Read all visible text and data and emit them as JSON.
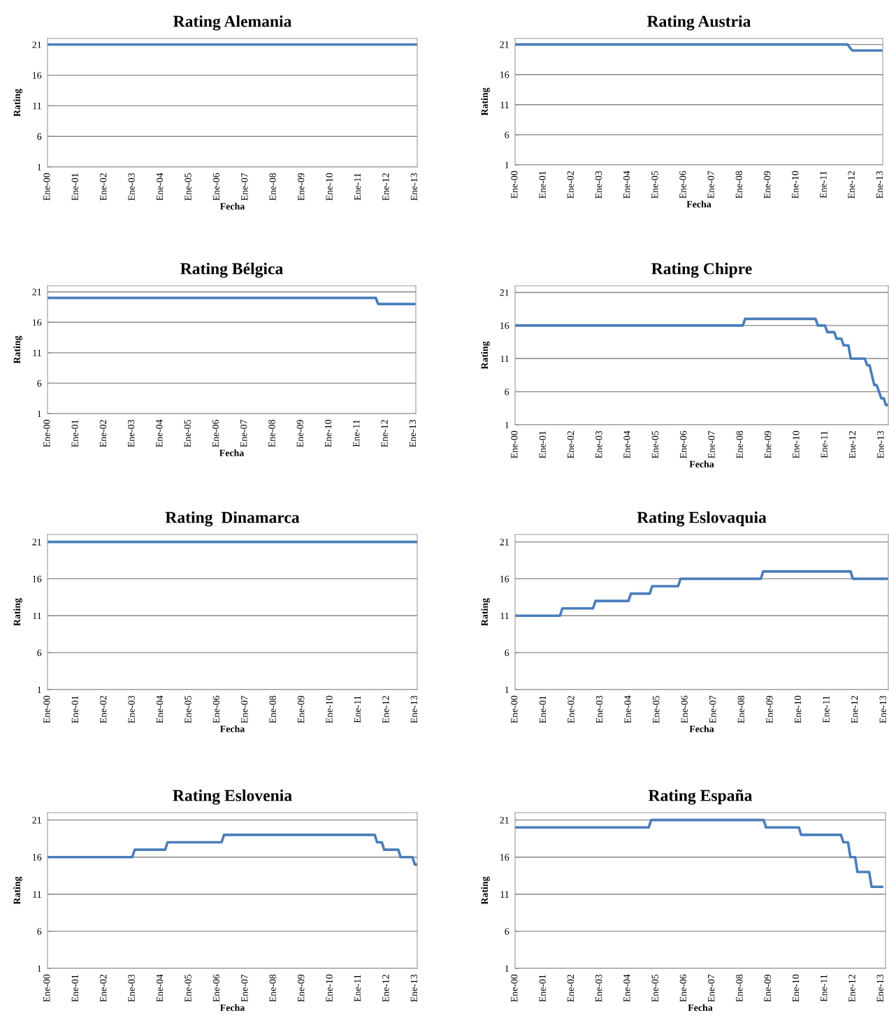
{
  "chart_data": [
    {
      "type": "line",
      "title": "Rating Alemania",
      "xlabel": "Fecha",
      "ylabel": "Rating",
      "grid": "y",
      "ylim": [
        1,
        22
      ],
      "yticks": [
        1,
        6,
        11,
        16,
        21
      ],
      "xlim": [
        "2000-01",
        "2013-02"
      ],
      "xticks": [
        {
          "value": "2000-01",
          "label": "Ene-00"
        },
        {
          "value": "2001-01",
          "label": "Ene-01"
        },
        {
          "value": "2002-01",
          "label": "Ene-02"
        },
        {
          "value": "2003-01",
          "label": "Ene-03"
        },
        {
          "value": "2004-01",
          "label": "Ene-04"
        },
        {
          "value": "2005-01",
          "label": "Ene-05"
        },
        {
          "value": "2006-01",
          "label": "Ene-06"
        },
        {
          "value": "2007-01",
          "label": "Ene-07"
        },
        {
          "value": "2008-01",
          "label": "Ene-08"
        },
        {
          "value": "2009-01",
          "label": "Ene-09"
        },
        {
          "value": "2010-01",
          "label": "Ene-10"
        },
        {
          "value": "2011-01",
          "label": "Ene-11"
        },
        {
          "value": "2012-01",
          "label": "Ene-12"
        },
        {
          "value": "2013-01",
          "label": "Ene-13"
        }
      ],
      "series": [
        {
          "color": "#4a7ebb",
          "x": [
            "2000-01",
            "2013-02"
          ],
          "values": [
            21,
            21
          ]
        }
      ]
    },
    {
      "type": "line",
      "title": "Rating Austria",
      "xlabel": "Fecha",
      "ylabel": "Rating",
      "grid": "y",
      "ylim": [
        1,
        22
      ],
      "yticks": [
        1,
        6,
        11,
        16,
        21
      ],
      "xlim": [
        "2000-01",
        "2013-02"
      ],
      "xticks": [
        {
          "value": "2000-01",
          "label": "Ene-00"
        },
        {
          "value": "2001-01",
          "label": "Ene-01"
        },
        {
          "value": "2002-01",
          "label": "Ene-02"
        },
        {
          "value": "2003-01",
          "label": "Ene-03"
        },
        {
          "value": "2004-01",
          "label": "Ene-04"
        },
        {
          "value": "2005-01",
          "label": "Ene-05"
        },
        {
          "value": "2006-01",
          "label": "Ene-06"
        },
        {
          "value": "2007-01",
          "label": "Ene-07"
        },
        {
          "value": "2008-01",
          "label": "Ene-08"
        },
        {
          "value": "2009-01",
          "label": "Ene-09"
        },
        {
          "value": "2010-01",
          "label": "Ene-10"
        },
        {
          "value": "2011-01",
          "label": "Ene-11"
        },
        {
          "value": "2012-01",
          "label": "Ene-12"
        },
        {
          "value": "2013-01",
          "label": "Ene-13"
        }
      ],
      "series": [
        {
          "color": "#4a7ebb",
          "x": [
            "2000-01",
            "2011-11",
            "2012-01",
            "2013-02"
          ],
          "values": [
            21,
            21,
            20,
            20
          ]
        }
      ]
    },
    {
      "type": "line",
      "title": "Rating Bélgica",
      "xlabel": "Fecha",
      "ylabel": "Rating",
      "grid": "y",
      "ylim": [
        1,
        22
      ],
      "yticks": [
        1,
        6,
        11,
        16,
        21
      ],
      "xlim": [
        "2000-01",
        "2013-02"
      ],
      "xticks": [
        {
          "value": "2000-01",
          "label": "Ene-00"
        },
        {
          "value": "2001-01",
          "label": "Ene-01"
        },
        {
          "value": "2002-01",
          "label": "Ene-02"
        },
        {
          "value": "2003-01",
          "label": "Ene-03"
        },
        {
          "value": "2004-01",
          "label": "Ene-04"
        },
        {
          "value": "2005-01",
          "label": "Ene-05"
        },
        {
          "value": "2006-01",
          "label": "Ene-06"
        },
        {
          "value": "2007-01",
          "label": "Ene-07"
        },
        {
          "value": "2008-01",
          "label": "Ene-08"
        },
        {
          "value": "2009-01",
          "label": "Ene-09"
        },
        {
          "value": "2010-01",
          "label": "Ene-10"
        },
        {
          "value": "2011-01",
          "label": "Ene-11"
        },
        {
          "value": "2012-01",
          "label": "Ene-12"
        },
        {
          "value": "2013-01",
          "label": "Ene-13"
        }
      ],
      "series": [
        {
          "color": "#4a7ebb",
          "x": [
            "2000-01",
            "2011-09",
            "2011-10",
            "2013-02"
          ],
          "values": [
            20,
            20,
            19,
            19
          ]
        }
      ]
    },
    {
      "type": "line",
      "title": "Rating Chipre",
      "xlabel": "Fecha",
      "ylabel": "Rating",
      "grid": "y",
      "ylim": [
        1,
        22
      ],
      "yticks": [
        1,
        6,
        11,
        16,
        21
      ],
      "xlim": [
        "2000-01",
        "2013-04"
      ],
      "xticks": [
        {
          "value": "2000-01",
          "label": "Ene-00"
        },
        {
          "value": "2001-01",
          "label": "Ene-01"
        },
        {
          "value": "2002-01",
          "label": "Ene-02"
        },
        {
          "value": "2003-01",
          "label": "Ene-03"
        },
        {
          "value": "2004-01",
          "label": "Ene-04"
        },
        {
          "value": "2005-01",
          "label": "Ene-05"
        },
        {
          "value": "2006-01",
          "label": "Ene-06"
        },
        {
          "value": "2007-01",
          "label": "Ene-07"
        },
        {
          "value": "2008-01",
          "label": "Ene-08"
        },
        {
          "value": "2009-01",
          "label": "Ene-09"
        },
        {
          "value": "2010-01",
          "label": "Ene-10"
        },
        {
          "value": "2011-01",
          "label": "Ene-11"
        },
        {
          "value": "2012-01",
          "label": "Ene-12"
        },
        {
          "value": "2013-01",
          "label": "Ene-13"
        }
      ],
      "series": [
        {
          "color": "#4a7ebb",
          "x": [
            "2000-01",
            "2008-02",
            "2008-03",
            "2010-09",
            "2010-10",
            "2011-01",
            "2011-02",
            "2011-05",
            "2011-06",
            "2011-08",
            "2011-09",
            "2011-11",
            "2011-12",
            "2012-06",
            "2012-07",
            "2012-08",
            "2012-10",
            "2012-11",
            "2013-01",
            "2013-02",
            "2013-03",
            "2013-04"
          ],
          "values": [
            16,
            16,
            17,
            17,
            16,
            16,
            15,
            15,
            14,
            14,
            13,
            13,
            11,
            11,
            10,
            10,
            7,
            7,
            5,
            5,
            4,
            4
          ]
        }
      ]
    },
    {
      "type": "line",
      "title": "Rating  Dinamarca",
      "xlabel": "Fecha",
      "ylabel": "Rating",
      "grid": "y",
      "ylim": [
        1,
        22
      ],
      "yticks": [
        1,
        6,
        11,
        16,
        21
      ],
      "xlim": [
        "2000-01",
        "2013-02"
      ],
      "xticks": [
        {
          "value": "2000-01",
          "label": "Ene-00"
        },
        {
          "value": "2001-01",
          "label": "Ene-01"
        },
        {
          "value": "2002-01",
          "label": "Ene-02"
        },
        {
          "value": "2003-01",
          "label": "Ene-03"
        },
        {
          "value": "2004-01",
          "label": "Ene-04"
        },
        {
          "value": "2005-01",
          "label": "Ene-05"
        },
        {
          "value": "2006-01",
          "label": "Ene-06"
        },
        {
          "value": "2007-01",
          "label": "Ene-07"
        },
        {
          "value": "2008-01",
          "label": "Ene-08"
        },
        {
          "value": "2009-01",
          "label": "Ene-09"
        },
        {
          "value": "2010-01",
          "label": "Ene-10"
        },
        {
          "value": "2011-01",
          "label": "Ene-11"
        },
        {
          "value": "2012-01",
          "label": "Ene-12"
        },
        {
          "value": "2013-01",
          "label": "Ene-13"
        }
      ],
      "series": [
        {
          "color": "#4a7ebb",
          "x": [
            "2000-01",
            "2013-02"
          ],
          "values": [
            21,
            21
          ]
        }
      ]
    },
    {
      "type": "line",
      "title": "Rating Eslovaquia",
      "xlabel": "Fecha",
      "ylabel": "Rating",
      "grid": "y",
      "ylim": [
        1,
        22
      ],
      "yticks": [
        1,
        6,
        11,
        16,
        21
      ],
      "xlim": [
        "2000-01",
        "2013-03"
      ],
      "xticks": [
        {
          "value": "2000-01",
          "label": "Ene-00"
        },
        {
          "value": "2001-01",
          "label": "Ene-01"
        },
        {
          "value": "2002-01",
          "label": "Ene-02"
        },
        {
          "value": "2003-01",
          "label": "Ene-03"
        },
        {
          "value": "2004-01",
          "label": "Ene-04"
        },
        {
          "value": "2005-01",
          "label": "Ene-05"
        },
        {
          "value": "2006-01",
          "label": "Ene-06"
        },
        {
          "value": "2007-01",
          "label": "Ene-07"
        },
        {
          "value": "2008-01",
          "label": "Ene-08"
        },
        {
          "value": "2009-01",
          "label": "Ene-09"
        },
        {
          "value": "2010-01",
          "label": "Ene-10"
        },
        {
          "value": "2011-01",
          "label": "Ene-11"
        },
        {
          "value": "2012-01",
          "label": "Ene-12"
        },
        {
          "value": "2013-01",
          "label": "Ene-13"
        }
      ],
      "series": [
        {
          "color": "#4a7ebb",
          "x": [
            "2000-01",
            "2001-08",
            "2001-09",
            "2002-10",
            "2002-11",
            "2004-01",
            "2004-02",
            "2004-10",
            "2004-11",
            "2005-10",
            "2005-11",
            "2008-09",
            "2008-10",
            "2011-11",
            "2011-12",
            "2013-03"
          ],
          "values": [
            11,
            11,
            12,
            12,
            13,
            13,
            14,
            14,
            15,
            15,
            16,
            16,
            17,
            17,
            16,
            16
          ]
        }
      ]
    },
    {
      "type": "line",
      "title": "Rating Eslovenia",
      "xlabel": "Fecha",
      "ylabel": "Rating",
      "grid": "y",
      "ylim": [
        1,
        22
      ],
      "yticks": [
        1,
        6,
        11,
        16,
        21
      ],
      "xlim": [
        "2000-01",
        "2013-02"
      ],
      "xticks": [
        {
          "value": "2000-01",
          "label": "Ene-00"
        },
        {
          "value": "2001-01",
          "label": "Ene-01"
        },
        {
          "value": "2002-01",
          "label": "Ene-02"
        },
        {
          "value": "2003-01",
          "label": "Ene-03"
        },
        {
          "value": "2004-01",
          "label": "Ene-04"
        },
        {
          "value": "2005-01",
          "label": "Ene-05"
        },
        {
          "value": "2006-01",
          "label": "Ene-06"
        },
        {
          "value": "2007-01",
          "label": "Ene-07"
        },
        {
          "value": "2008-01",
          "label": "Ene-08"
        },
        {
          "value": "2009-01",
          "label": "Ene-09"
        },
        {
          "value": "2010-01",
          "label": "Ene-10"
        },
        {
          "value": "2011-01",
          "label": "Ene-11"
        },
        {
          "value": "2012-01",
          "label": "Ene-12"
        },
        {
          "value": "2013-01",
          "label": "Ene-13"
        }
      ],
      "series": [
        {
          "color": "#4a7ebb",
          "x": [
            "2000-01",
            "2003-01",
            "2003-02",
            "2004-03",
            "2004-04",
            "2006-03",
            "2006-04",
            "2011-08",
            "2011-09",
            "2011-11",
            "2011-12",
            "2012-06",
            "2012-07",
            "2012-12",
            "2013-01",
            "2013-02"
          ],
          "values": [
            16,
            16,
            17,
            17,
            18,
            18,
            19,
            19,
            18,
            18,
            17,
            17,
            16,
            16,
            15,
            15
          ]
        }
      ]
    },
    {
      "type": "line",
      "title": "Rating España",
      "xlabel": "Fecha",
      "ylabel": "Rating",
      "grid": "y",
      "ylim": [
        1,
        22
      ],
      "yticks": [
        1,
        6,
        11,
        16,
        21
      ],
      "xlim": [
        "2000-01",
        "2013-03"
      ],
      "xticks": [
        {
          "value": "2000-01",
          "label": "Ene-00"
        },
        {
          "value": "2001-01",
          "label": "Ene-01"
        },
        {
          "value": "2002-01",
          "label": "Ene-02"
        },
        {
          "value": "2003-01",
          "label": "Ene-03"
        },
        {
          "value": "2004-01",
          "label": "Ene-04"
        },
        {
          "value": "2005-01",
          "label": "Ene-05"
        },
        {
          "value": "2006-01",
          "label": "Ene-06"
        },
        {
          "value": "2007-01",
          "label": "Ene-07"
        },
        {
          "value": "2008-01",
          "label": "Ene-08"
        },
        {
          "value": "2009-01",
          "label": "Ene-09"
        },
        {
          "value": "2010-01",
          "label": "Ene-10"
        },
        {
          "value": "2011-01",
          "label": "Ene-11"
        },
        {
          "value": "2012-01",
          "label": "Ene-12"
        },
        {
          "value": "2013-01",
          "label": "Ene-13"
        }
      ],
      "series": [
        {
          "color": "#4a7ebb",
          "x": [
            "2000-01",
            "2004-10",
            "2004-11",
            "2008-11",
            "2008-12",
            "2010-02",
            "2010-03",
            "2011-08",
            "2011-09",
            "2011-11",
            "2011-12",
            "2012-02",
            "2012-03",
            "2012-08",
            "2012-09",
            "2013-02"
          ],
          "values": [
            20,
            20,
            21,
            21,
            20,
            20,
            19,
            19,
            18,
            18,
            16,
            16,
            14,
            14,
            12,
            12
          ]
        }
      ]
    }
  ]
}
